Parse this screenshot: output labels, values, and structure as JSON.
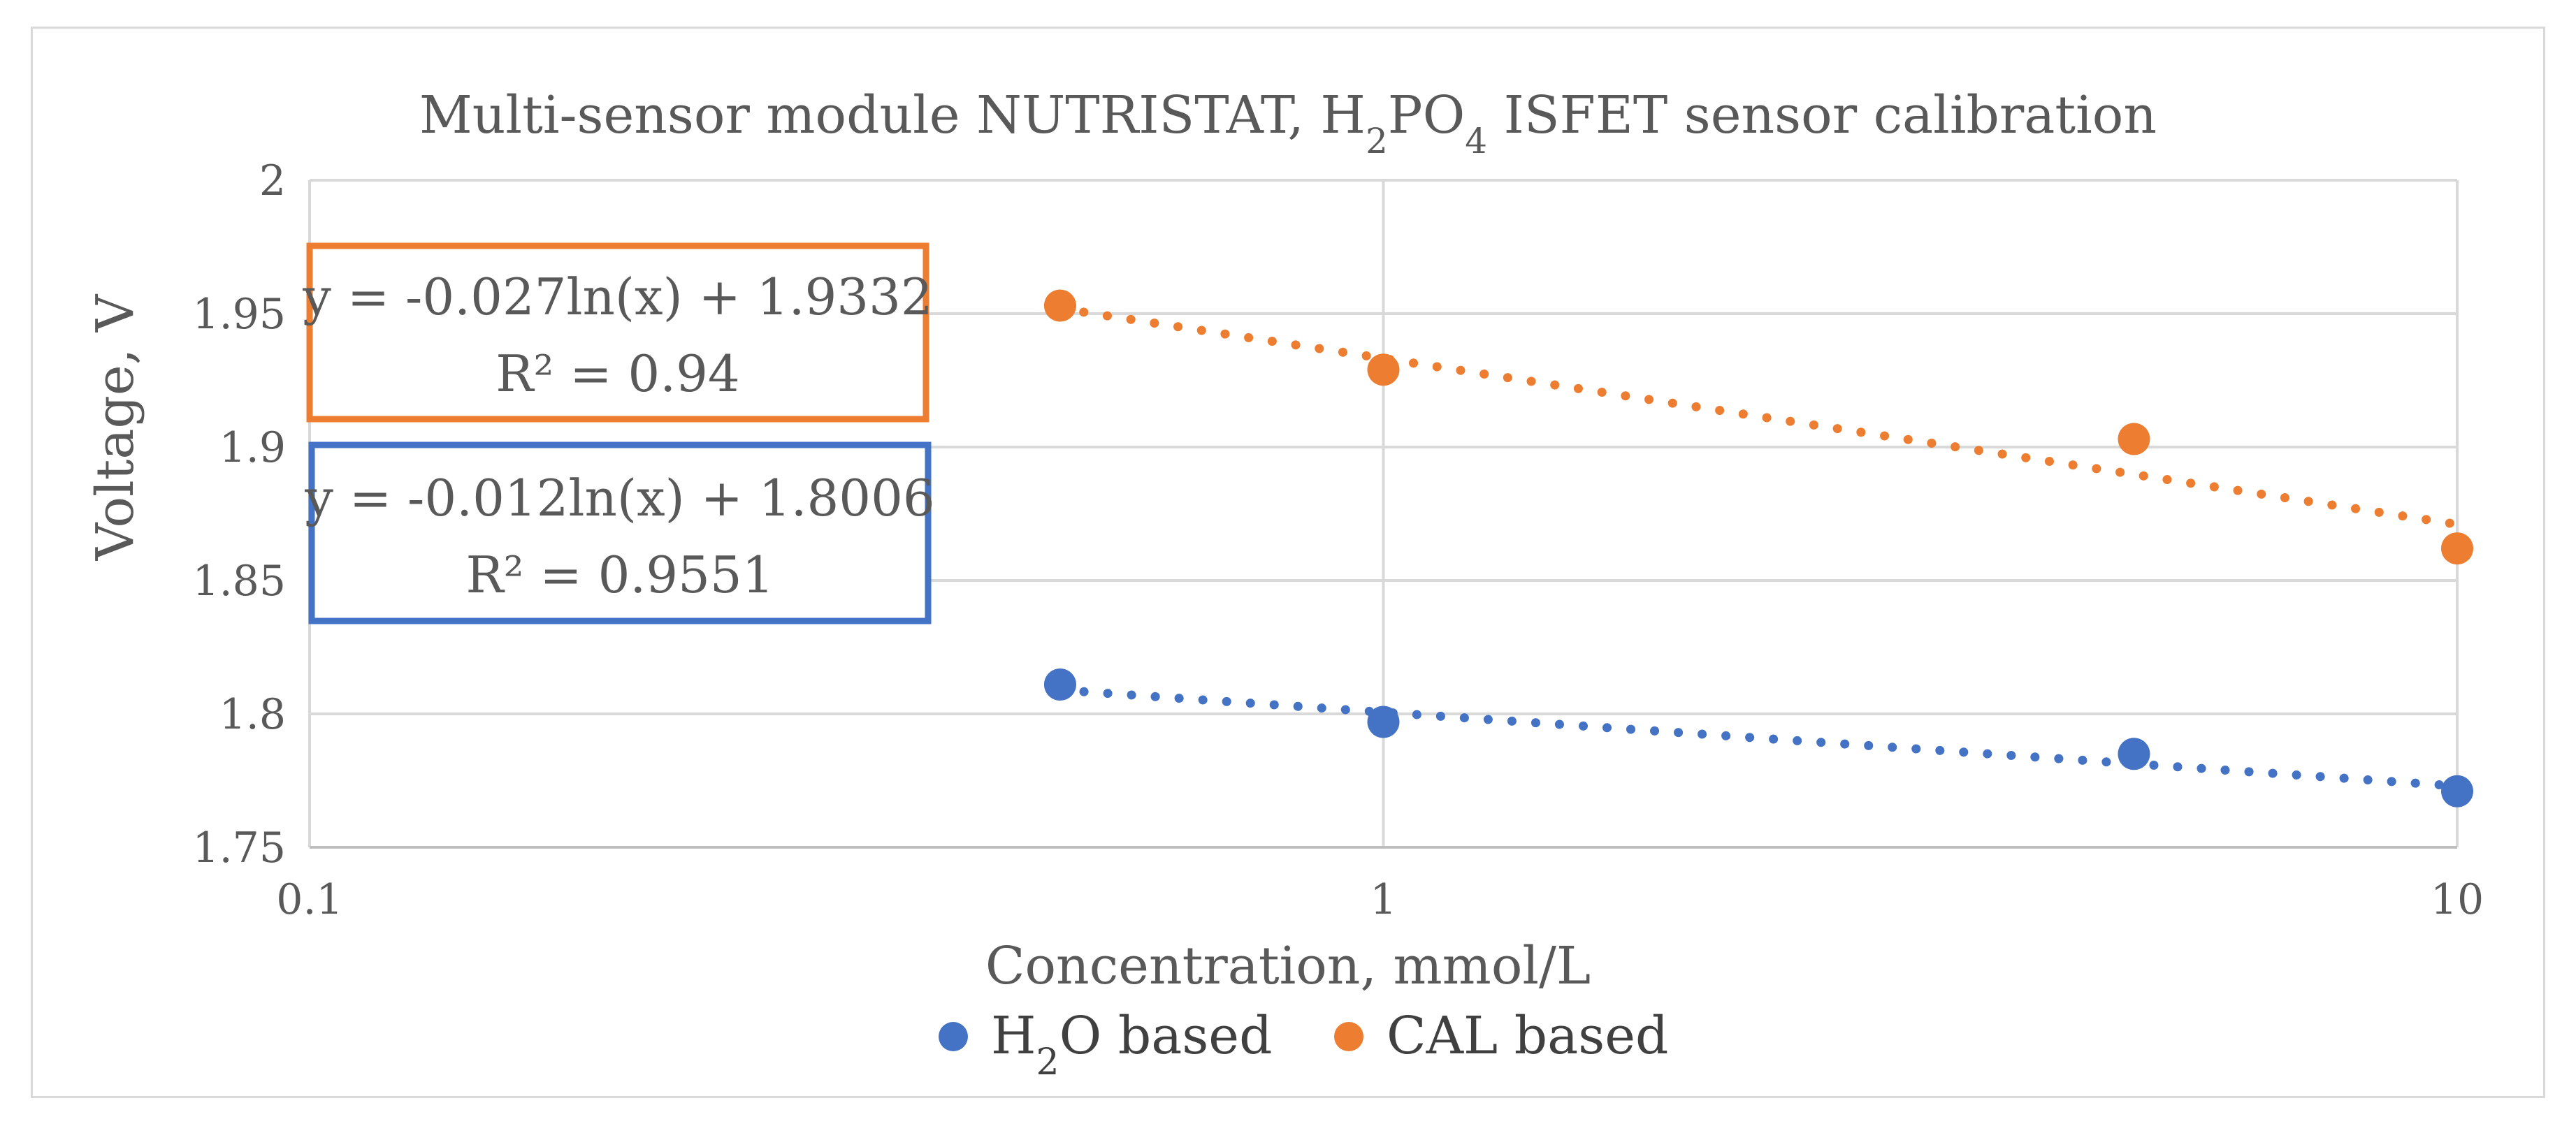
{
  "chart_data": {
    "type": "scatter",
    "title": {
      "main": "Multi-sensor module NUTRISTAT, H",
      "sub1": "2",
      "mid": "PO",
      "sub2": "4",
      "tail": " ISFET sensor calibration"
    },
    "xlabel": "Concentration, mmol/L",
    "ylabel": "Voltage, V",
    "x_scale": "log",
    "xlim": [
      0.1,
      10
    ],
    "ylim": [
      1.75,
      2
    ],
    "x_ticks": [
      0.1,
      1,
      10
    ],
    "x_tick_labels": [
      "0.1",
      "1",
      "10"
    ],
    "y_ticks": [
      1.75,
      1.8,
      1.85,
      1.9,
      1.95,
      2
    ],
    "y_tick_labels": [
      "1.75",
      "1.8",
      "1.85",
      "1.9",
      "1.95",
      "2"
    ],
    "grid": true,
    "legend_position": "bottom",
    "series": [
      {
        "name": "H2O based",
        "legend_parts": [
          "H",
          "2",
          "O based"
        ],
        "color": "#4472C4",
        "x": [
          0.5,
          1,
          5,
          10
        ],
        "y": [
          1.811,
          1.797,
          1.785,
          1.771
        ],
        "trendline": {
          "type": "log",
          "a": -0.012,
          "b": 1.8006
        },
        "equation_line1": "y = -0.012ln(x) + 1.8006",
        "equation_line2": "R² = 0.9551"
      },
      {
        "name": "CAL based",
        "legend_parts": [
          "CAL based",
          "",
          ""
        ],
        "color": "#ED7D31",
        "x": [
          0.5,
          1,
          5,
          10
        ],
        "y": [
          1.953,
          1.929,
          1.903,
          1.862
        ],
        "trendline": {
          "type": "log",
          "a": -0.027,
          "b": 1.9332
        },
        "equation_line1": "y = -0.027ln(x) + 1.9332",
        "equation_line2": "R² = 0.94"
      }
    ]
  },
  "colors": {
    "grid": "#d9d9d9",
    "text": "#595959"
  }
}
